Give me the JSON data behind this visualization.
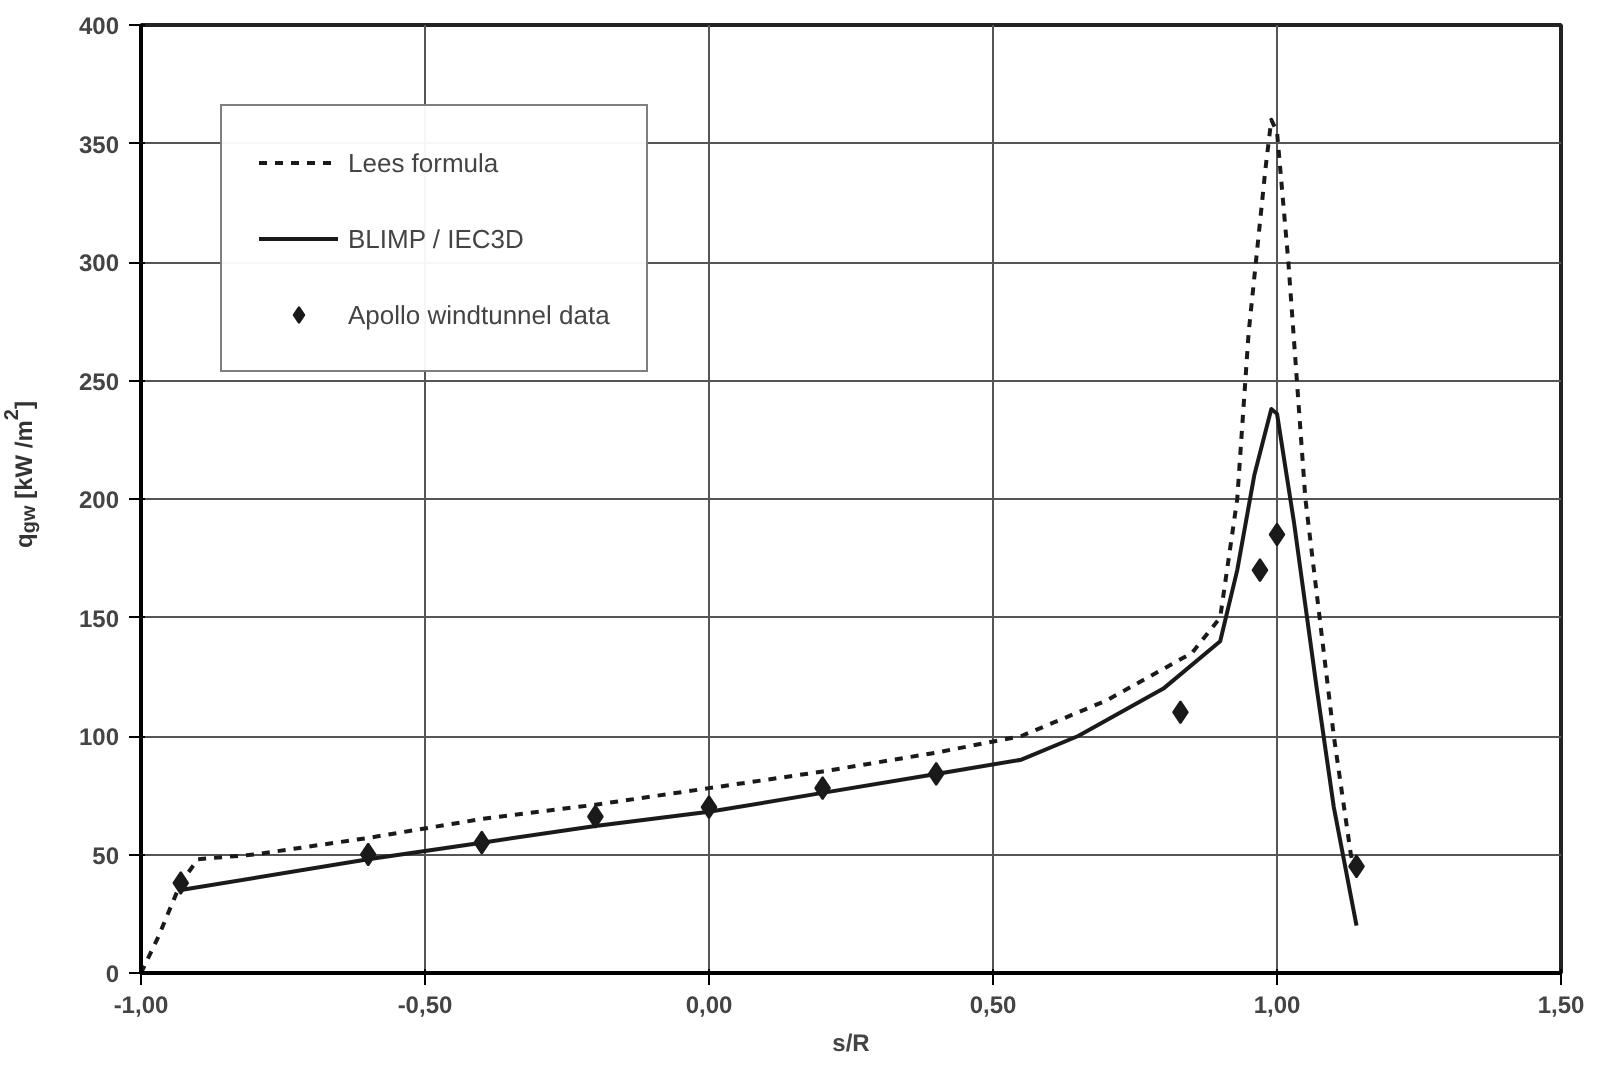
{
  "chart_data": {
    "type": "line",
    "xlabel": "s/R",
    "ylabel": "q$_{gw}$ [kW /m$^{2}$]",
    "xlim": [
      -1,
      1.5
    ],
    "ylim": [
      0,
      400
    ],
    "xticks": [
      {
        "value": -1,
        "label": "-1,00"
      },
      {
        "value": -0.5,
        "label": "-0,50"
      },
      {
        "value": 0,
        "label": "0,00"
      },
      {
        "value": 0.5,
        "label": "0,50"
      },
      {
        "value": 1,
        "label": "1,00"
      },
      {
        "value": 1.5,
        "label": "1,50"
      }
    ],
    "yticks": [
      0,
      50,
      100,
      150,
      200,
      250,
      300,
      350,
      400
    ],
    "grid": true,
    "legend": "top left",
    "series": [
      {
        "name": "Lees formula",
        "type": "line",
        "line_style": "dashed",
        "color": "#1a1a1a",
        "x": [
          -1,
          -0.97,
          -0.93,
          -0.9,
          -0.8,
          -0.6,
          -0.4,
          -0.2,
          0,
          0.2,
          0.4,
          0.55,
          0.7,
          0.85,
          0.9,
          0.93,
          0.95,
          0.98,
          0.99,
          1.0,
          1.02,
          1.05,
          1.1,
          1.13,
          1.14
        ],
        "values": [
          0,
          15,
          38,
          48,
          50,
          57,
          65,
          71,
          78,
          85,
          93,
          100,
          115,
          135,
          150,
          200,
          270,
          340,
          360,
          355,
          300,
          200,
          100,
          50,
          40
        ]
      },
      {
        "name": "BLIMP / IEC3D",
        "type": "line",
        "line_style": "solid",
        "color": "#1a1a1a",
        "x": [
          -0.93,
          -0.6,
          -0.4,
          -0.2,
          0,
          0.2,
          0.4,
          0.55,
          0.65,
          0.8,
          0.9,
          0.93,
          0.96,
          0.99,
          1.0,
          1.03,
          1.07,
          1.1,
          1.14
        ],
        "values": [
          35,
          48,
          55,
          62,
          68,
          76,
          84,
          90,
          100,
          120,
          140,
          170,
          210,
          238,
          236,
          190,
          120,
          70,
          20
        ]
      },
      {
        "name": "Apollo windtunnel data",
        "type": "scatter",
        "marker": "diamond",
        "color": "#1a1a1a",
        "x": [
          -0.93,
          -0.6,
          -0.4,
          -0.2,
          0,
          0.2,
          0.4,
          0.83,
          0.97,
          1.0,
          1.14
        ],
        "values": [
          38,
          50,
          55,
          66,
          70,
          78,
          84,
          110,
          170,
          185,
          45
        ]
      }
    ]
  }
}
